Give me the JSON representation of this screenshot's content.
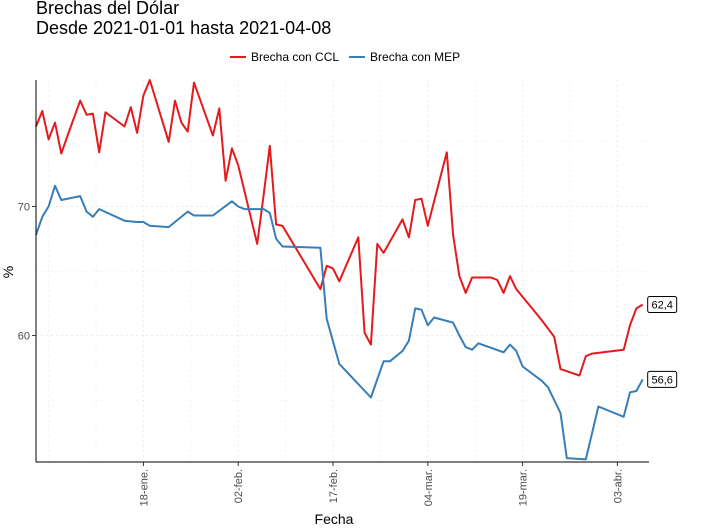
{
  "chart_data": {
    "type": "line",
    "title": "Brechas del Dólar",
    "subtitle": "Desde 2021-01-01 hasta 2021-04-08",
    "xlabel": "Fecha",
    "ylabel": "%",
    "xlim": [
      "2021-01-01",
      "2021-04-08"
    ],
    "ylim": [
      50.2,
      79.8
    ],
    "yticks": [
      60,
      70
    ],
    "ytick_labels": [
      "60",
      "70"
    ],
    "xticks": [
      "2021-01-18",
      "2021-02-02",
      "2021-02-17",
      "2021-03-04",
      "2021-03-19",
      "2021-04-03"
    ],
    "xtick_labels": [
      "18-ene.",
      "02-feb.",
      "17-feb.",
      "04-mar.",
      "19-mar.",
      "03-abr."
    ],
    "grid": true,
    "legend_position": "top",
    "series": [
      {
        "name": "Brecha con CCL",
        "color": "#e41a1c",
        "end_label": "62,4",
        "points": [
          [
            "2021-01-01",
            76.2
          ],
          [
            "2021-01-02",
            77.4
          ],
          [
            "2021-01-03",
            75.2
          ],
          [
            "2021-01-04",
            76.5
          ],
          [
            "2021-01-05",
            74.1
          ],
          [
            "2021-01-06",
            75.5
          ],
          [
            "2021-01-08",
            78.2
          ],
          [
            "2021-01-09",
            77.1
          ],
          [
            "2021-01-10",
            77.2
          ],
          [
            "2021-01-11",
            74.2
          ],
          [
            "2021-01-12",
            77.3
          ],
          [
            "2021-01-15",
            76.2
          ],
          [
            "2021-01-16",
            77.7
          ],
          [
            "2021-01-17",
            75.7
          ],
          [
            "2021-01-18",
            78.6
          ],
          [
            "2021-01-19",
            79.8
          ],
          [
            "2021-01-22",
            75.0
          ],
          [
            "2021-01-23",
            78.2
          ],
          [
            "2021-01-24",
            76.5
          ],
          [
            "2021-01-25",
            75.8
          ],
          [
            "2021-01-26",
            79.6
          ],
          [
            "2021-01-29",
            75.5
          ],
          [
            "2021-01-30",
            77.6
          ],
          [
            "2021-01-31",
            72.0
          ],
          [
            "2021-02-01",
            74.5
          ],
          [
            "2021-02-02",
            73.2
          ],
          [
            "2021-02-05",
            67.1
          ],
          [
            "2021-02-06",
            70.8
          ],
          [
            "2021-02-07",
            74.7
          ],
          [
            "2021-02-08",
            68.6
          ],
          [
            "2021-02-09",
            68.5
          ],
          [
            "2021-02-15",
            63.6
          ],
          [
            "2021-02-16",
            65.4
          ],
          [
            "2021-02-17",
            65.2
          ],
          [
            "2021-02-18",
            64.2
          ],
          [
            "2021-02-21",
            67.6
          ],
          [
            "2021-02-22",
            60.2
          ],
          [
            "2021-02-23",
            59.3
          ],
          [
            "2021-02-24",
            67.1
          ],
          [
            "2021-02-25",
            66.4
          ],
          [
            "2021-02-28",
            69.0
          ],
          [
            "2021-03-01",
            67.6
          ],
          [
            "2021-03-02",
            70.5
          ],
          [
            "2021-03-03",
            70.6
          ],
          [
            "2021-03-04",
            68.5
          ],
          [
            "2021-03-07",
            74.2
          ],
          [
            "2021-03-08",
            67.8
          ],
          [
            "2021-03-09",
            64.6
          ],
          [
            "2021-03-10",
            63.3
          ],
          [
            "2021-03-11",
            64.5
          ],
          [
            "2021-03-14",
            64.5
          ],
          [
            "2021-03-15",
            64.3
          ],
          [
            "2021-03-16",
            63.3
          ],
          [
            "2021-03-17",
            64.6
          ],
          [
            "2021-03-18",
            63.6
          ],
          [
            "2021-03-22",
            61.2
          ],
          [
            "2021-03-24",
            59.9
          ],
          [
            "2021-03-25",
            57.4
          ],
          [
            "2021-03-28",
            56.9
          ],
          [
            "2021-03-29",
            58.4
          ],
          [
            "2021-03-30",
            58.6
          ],
          [
            "2021-04-04",
            58.9
          ],
          [
            "2021-04-05",
            60.8
          ],
          [
            "2021-04-06",
            62.1
          ],
          [
            "2021-04-07",
            62.4
          ]
        ]
      },
      {
        "name": "Brecha con MEP",
        "color": "#377eb8",
        "end_label": "56,6",
        "points": [
          [
            "2021-01-01",
            67.8
          ],
          [
            "2021-01-02",
            69.2
          ],
          [
            "2021-01-03",
            70.0
          ],
          [
            "2021-01-04",
            71.6
          ],
          [
            "2021-01-05",
            70.5
          ],
          [
            "2021-01-08",
            70.8
          ],
          [
            "2021-01-09",
            69.6
          ],
          [
            "2021-01-10",
            69.2
          ],
          [
            "2021-01-11",
            69.8
          ],
          [
            "2021-01-15",
            68.9
          ],
          [
            "2021-01-17",
            68.8
          ],
          [
            "2021-01-18",
            68.8
          ],
          [
            "2021-01-19",
            68.5
          ],
          [
            "2021-01-22",
            68.4
          ],
          [
            "2021-01-25",
            69.6
          ],
          [
            "2021-01-26",
            69.3
          ],
          [
            "2021-01-29",
            69.3
          ],
          [
            "2021-02-01",
            70.4
          ],
          [
            "2021-02-02",
            70.0
          ],
          [
            "2021-02-03",
            69.8
          ],
          [
            "2021-02-06",
            69.8
          ],
          [
            "2021-02-07",
            69.5
          ],
          [
            "2021-02-08",
            67.5
          ],
          [
            "2021-02-09",
            66.9
          ],
          [
            "2021-02-15",
            66.8
          ],
          [
            "2021-02-16",
            61.3
          ],
          [
            "2021-02-18",
            57.8
          ],
          [
            "2021-02-23",
            55.2
          ],
          [
            "2021-02-25",
            58.0
          ],
          [
            "2021-02-26",
            58.0
          ],
          [
            "2021-02-28",
            58.8
          ],
          [
            "2021-03-01",
            59.6
          ],
          [
            "2021-03-02",
            62.1
          ],
          [
            "2021-03-03",
            62.0
          ],
          [
            "2021-03-04",
            60.8
          ],
          [
            "2021-03-05",
            61.4
          ],
          [
            "2021-03-08",
            61.0
          ],
          [
            "2021-03-09",
            60.0
          ],
          [
            "2021-03-10",
            59.1
          ],
          [
            "2021-03-11",
            58.9
          ],
          [
            "2021-03-12",
            59.4
          ],
          [
            "2021-03-16",
            58.7
          ],
          [
            "2021-03-17",
            59.3
          ],
          [
            "2021-03-18",
            58.8
          ],
          [
            "2021-03-19",
            57.6
          ],
          [
            "2021-03-22",
            56.5
          ],
          [
            "2021-03-23",
            56.0
          ],
          [
            "2021-03-25",
            54.0
          ],
          [
            "2021-03-26",
            50.5
          ],
          [
            "2021-03-29",
            50.4
          ],
          [
            "2021-03-31",
            54.5
          ],
          [
            "2021-04-04",
            53.7
          ],
          [
            "2021-04-05",
            55.6
          ],
          [
            "2021-04-06",
            55.7
          ],
          [
            "2021-04-07",
            56.6
          ]
        ]
      }
    ]
  }
}
